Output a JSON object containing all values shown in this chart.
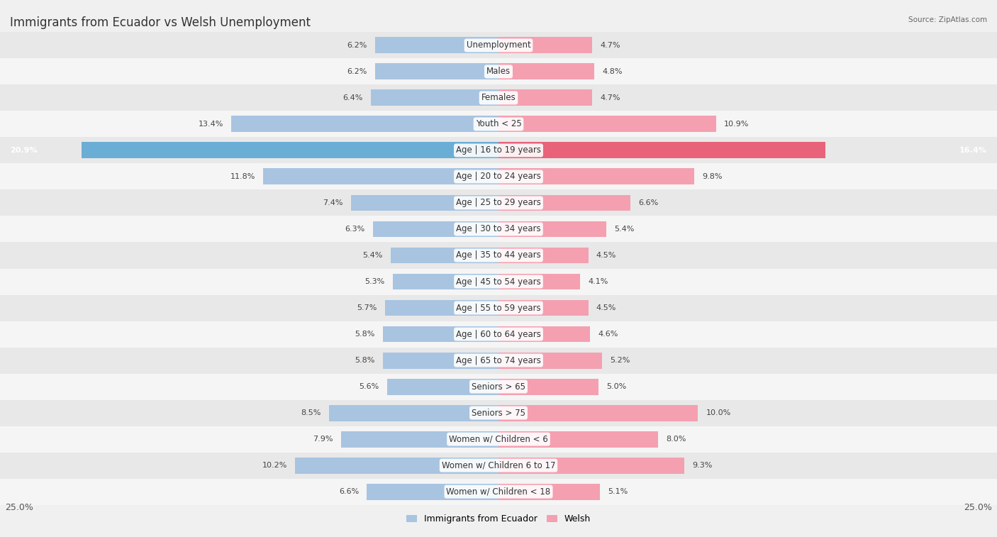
{
  "title": "Immigrants from Ecuador vs Welsh Unemployment",
  "source": "Source: ZipAtlas.com",
  "categories": [
    "Unemployment",
    "Males",
    "Females",
    "Youth < 25",
    "Age | 16 to 19 years",
    "Age | 20 to 24 years",
    "Age | 25 to 29 years",
    "Age | 30 to 34 years",
    "Age | 35 to 44 years",
    "Age | 45 to 54 years",
    "Age | 55 to 59 years",
    "Age | 60 to 64 years",
    "Age | 65 to 74 years",
    "Seniors > 65",
    "Seniors > 75",
    "Women w/ Children < 6",
    "Women w/ Children 6 to 17",
    "Women w/ Children < 18"
  ],
  "left_values": [
    6.2,
    6.2,
    6.4,
    13.4,
    20.9,
    11.8,
    7.4,
    6.3,
    5.4,
    5.3,
    5.7,
    5.8,
    5.8,
    5.6,
    8.5,
    7.9,
    10.2,
    6.6
  ],
  "right_values": [
    4.7,
    4.8,
    4.7,
    10.9,
    16.4,
    9.8,
    6.6,
    5.4,
    4.5,
    4.1,
    4.5,
    4.6,
    5.2,
    5.0,
    10.0,
    8.0,
    9.3,
    5.1
  ],
  "left_color": "#a8c4e0",
  "right_color": "#f4a0b0",
  "left_highlight_color": "#6aaed6",
  "right_highlight_color": "#e8637a",
  "left_label": "Immigrants from Ecuador",
  "right_label": "Welsh",
  "axis_max": 25.0,
  "bg_color": "#f0f0f0",
  "row_colors": [
    "#e8e8e8",
    "#f5f5f5"
  ],
  "title_fontsize": 12,
  "label_fontsize": 8.5,
  "value_fontsize": 8,
  "highlight_index": 4
}
